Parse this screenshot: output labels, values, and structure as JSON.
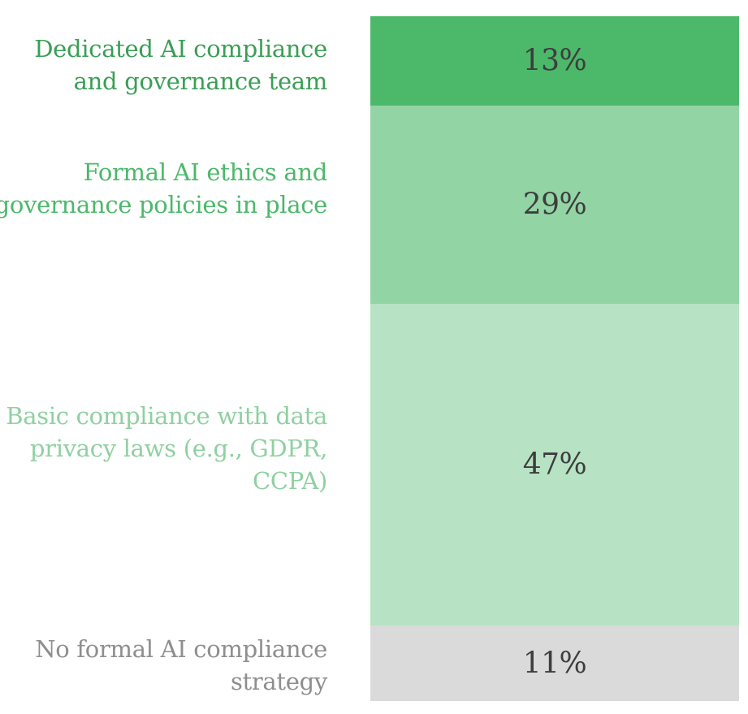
{
  "chart_data": {
    "type": "bar",
    "orientation": "vertical-stacked-100",
    "categories": [
      "Dedicated AI compliance and governance team",
      "Formal AI ethics and governance policies in place",
      "Basic compliance with data privacy laws (e.g., GDPR, CCPA)",
      "No formal AI compliance strategy"
    ],
    "values": [
      13,
      29,
      47,
      11
    ],
    "value_labels": [
      "13%",
      "29%",
      "47%",
      "11%"
    ],
    "colors": [
      "#4cb86a",
      "#93d4a5",
      "#b7e3c4",
      "#dadada"
    ],
    "label_colors": [
      "#3a9e55",
      "#4cb86a",
      "#8fd0a1",
      "#8e8e8e"
    ],
    "title": "",
    "xlabel": "",
    "ylabel": "",
    "ylim": [
      0,
      100
    ],
    "grid": false,
    "legend": "left-side labels"
  }
}
